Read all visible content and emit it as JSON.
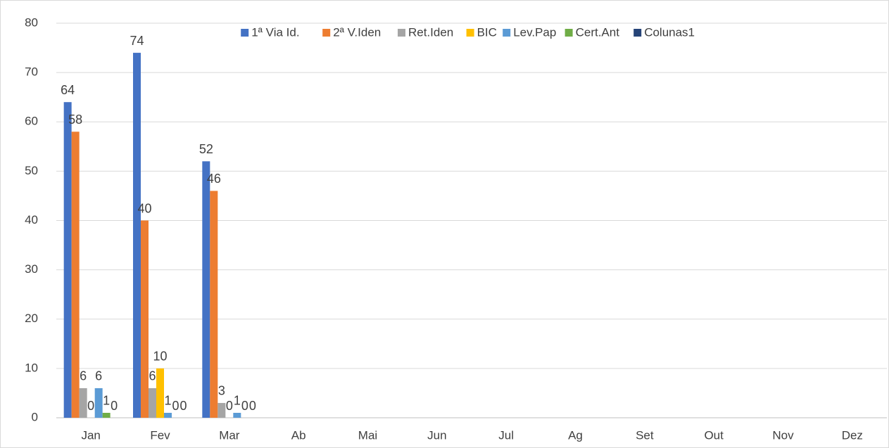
{
  "chart_data": {
    "type": "bar",
    "categories": [
      "Jan",
      "Fev",
      "Mar",
      "Ab",
      "Mai",
      "Jun",
      "Jul",
      "Ag",
      "Set",
      "Out",
      "Nov",
      "Dez"
    ],
    "series": [
      {
        "name": "1ª Via Id.",
        "color": "#4472c4",
        "values": [
          64,
          74,
          52,
          null,
          null,
          null,
          null,
          null,
          null,
          null,
          null,
          null
        ]
      },
      {
        "name": "2ª V.Iden",
        "color": "#ed7d31",
        "values": [
          58,
          40,
          46,
          null,
          null,
          null,
          null,
          null,
          null,
          null,
          null,
          null
        ]
      },
      {
        "name": "Ret.Iden",
        "color": "#a5a5a5",
        "values": [
          6,
          6,
          3,
          null,
          null,
          null,
          null,
          null,
          null,
          null,
          null,
          null
        ]
      },
      {
        "name": "BIC",
        "color": "#ffc000",
        "values": [
          0,
          10,
          0,
          null,
          null,
          null,
          null,
          null,
          null,
          null,
          null,
          null
        ]
      },
      {
        "name": "Lev.Pap",
        "color": "#5b9bd5",
        "values": [
          6,
          1,
          1,
          null,
          null,
          null,
          null,
          null,
          null,
          null,
          null,
          null
        ]
      },
      {
        "name": "Cert.Ant",
        "color": "#70ad47",
        "values": [
          1,
          0,
          0,
          null,
          null,
          null,
          null,
          null,
          null,
          null,
          null,
          null
        ]
      },
      {
        "name": "Colunas1",
        "color": "#264478",
        "values": [
          0,
          0,
          0,
          null,
          null,
          null,
          null,
          null,
          null,
          null,
          null,
          null
        ]
      }
    ],
    "ylim": [
      0,
      80
    ],
    "yticks": [
      0,
      10,
      20,
      30,
      40,
      50,
      60,
      70,
      80
    ],
    "grid": true,
    "legend": "top"
  }
}
